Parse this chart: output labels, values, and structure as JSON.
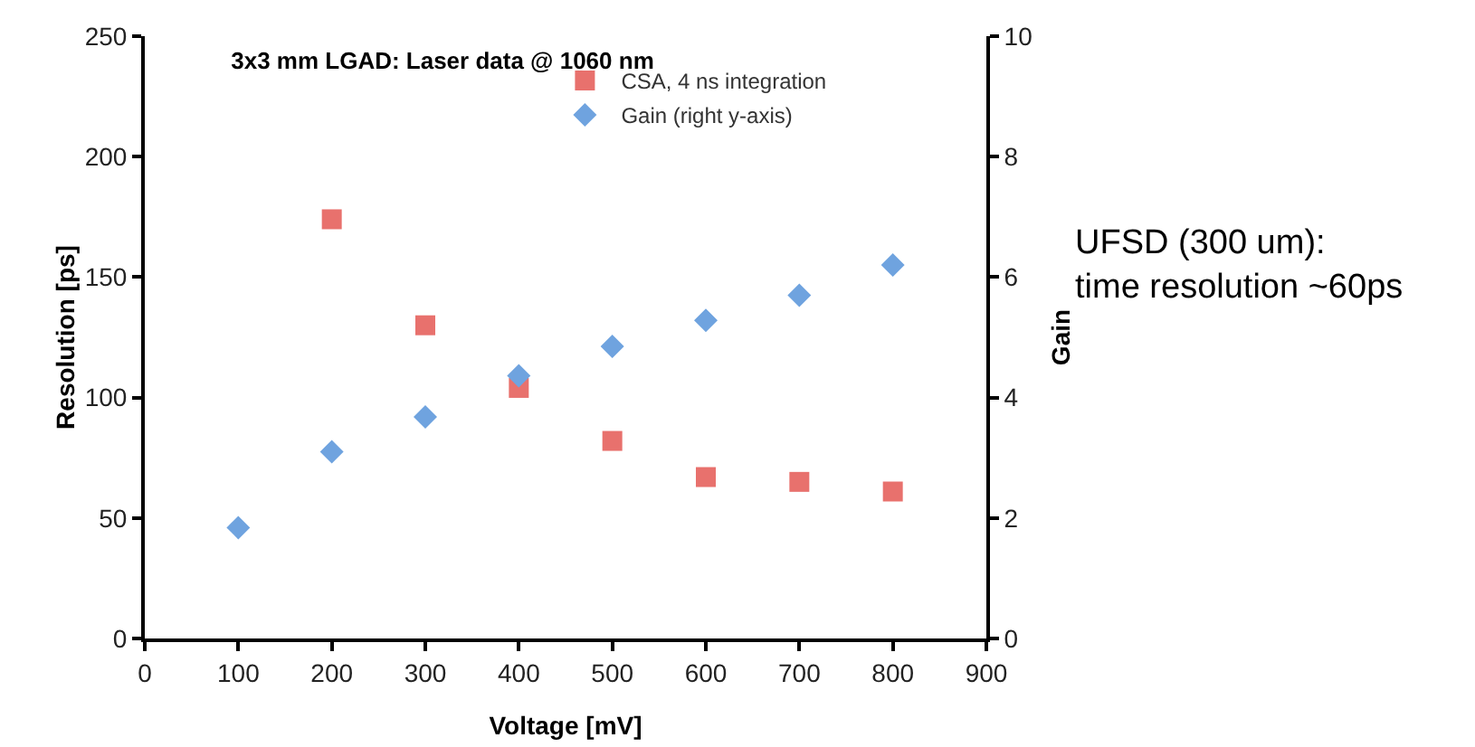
{
  "chart_data": {
    "type": "scatter",
    "title": "3x3 mm LGAD: Laser data @ 1060 nm",
    "xlabel": "Voltage [mV]",
    "ylabel": "Resolution [ps]",
    "y2label": "Gain",
    "series": [
      {
        "name": "CSA, 4 ns integration",
        "color": "#e8716d",
        "marker": "square",
        "x": [
          200,
          300,
          400,
          500,
          600,
          700,
          800
        ],
        "values": [
          174,
          130,
          104,
          82,
          67,
          65,
          61
        ]
      },
      {
        "name": "Gain (right y-axis)",
        "color": "#6fa3df",
        "marker": "diamond",
        "axis": "y2",
        "x": [
          100,
          200,
          300,
          400,
          500,
          600,
          700,
          800
        ],
        "values": [
          1.84,
          3.1,
          3.68,
          4.36,
          4.85,
          5.28,
          5.7,
          6.2
        ]
      }
    ],
    "xlim": [
      0,
      900
    ],
    "xticks": [
      0,
      100,
      200,
      300,
      400,
      500,
      600,
      700,
      800,
      900
    ],
    "ylim": [
      0,
      250
    ],
    "yticks": [
      0,
      50,
      100,
      150,
      200,
      250
    ],
    "y2lim": [
      0,
      10
    ],
    "y2ticks": [
      0,
      2,
      4,
      6,
      8,
      10
    ],
    "grid": false,
    "legend": "top",
    "annotations": [
      "UFSD (300 um):\ntime resolution ~60ps"
    ]
  }
}
